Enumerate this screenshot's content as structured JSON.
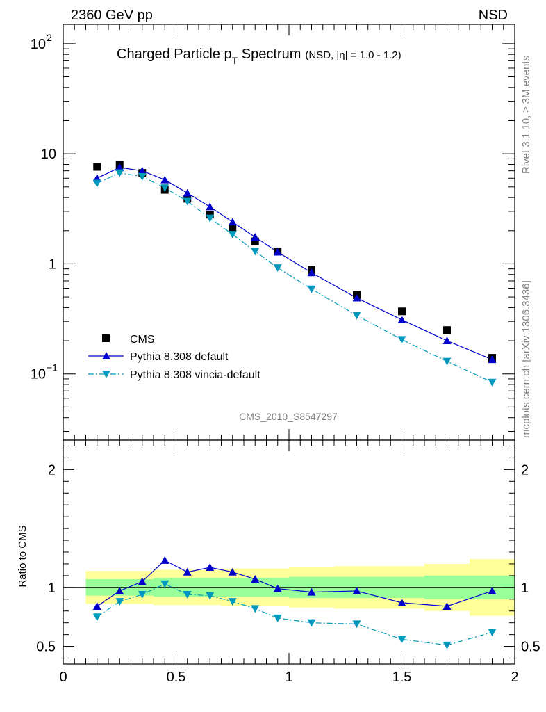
{
  "header": {
    "left": "2360 GeV pp",
    "right": "NSD"
  },
  "side_labels": {
    "rivet": "Rivet 3.1.10, ≥ 3M events",
    "mcplots": "mcplots.cern.ch [arXiv:1306.3436]"
  },
  "chart_data": {
    "type": "scatter",
    "title_main": "Charged Particle p",
    "title_sub": "T",
    "title_tail": " Spectrum",
    "title_small": "(NSD, |η| = 1.0 - 1.2)",
    "analysis_tag": "CMS_2010_S8547297",
    "ratio_ylabel": "Ratio to CMS",
    "xlim": [
      0,
      2
    ],
    "ylim": [
      0.025,
      150
    ],
    "yscale": "log",
    "ratio_ylim": [
      0.35,
      2.25
    ],
    "x_ticks": [
      "0",
      "0.5",
      "1",
      "1.5",
      "2"
    ],
    "y_ticks": [
      {
        "value": 0.1,
        "base": "10",
        "exp": "−1"
      },
      {
        "value": 1,
        "base": "1",
        "exp": ""
      },
      {
        "value": 10,
        "base": "10",
        "exp": ""
      },
      {
        "value": 100,
        "base": "10",
        "exp": "2"
      }
    ],
    "ratio_ticks": [
      "0.5",
      "1",
      "2"
    ],
    "x": [
      0.15,
      0.25,
      0.35,
      0.45,
      0.55,
      0.65,
      0.75,
      0.85,
      0.95,
      1.1,
      1.3,
      1.5,
      1.7,
      1.9
    ],
    "bin_edges": [
      0.1,
      0.2,
      0.3,
      0.4,
      0.5,
      0.6,
      0.7,
      0.8,
      0.9,
      1.0,
      1.2,
      1.4,
      1.6,
      1.8,
      2.0
    ],
    "band_inner": [
      0.07,
      0.07,
      0.07,
      0.08,
      0.08,
      0.08,
      0.08,
      0.08,
      0.08,
      0.09,
      0.09,
      0.09,
      0.1,
      0.1
    ],
    "band_outer": [
      0.14,
      0.14,
      0.14,
      0.15,
      0.15,
      0.15,
      0.16,
      0.16,
      0.16,
      0.17,
      0.18,
      0.18,
      0.2,
      0.24
    ],
    "legend_position": "bottom-left",
    "series": [
      {
        "name": "CMS",
        "color": "#000000",
        "marker": "square",
        "values": [
          7.6,
          7.9,
          6.7,
          4.7,
          3.9,
          2.8,
          2.1,
          1.6,
          1.3,
          0.88,
          0.52,
          0.37,
          0.25,
          0.14
        ]
      },
      {
        "name": "Pythia 8.308 default",
        "color": "#0000cc",
        "marker": "triangle-up",
        "line": "solid",
        "values": [
          6.0,
          7.5,
          7.0,
          5.8,
          4.4,
          3.3,
          2.4,
          1.75,
          1.28,
          0.83,
          0.49,
          0.31,
          0.2,
          0.135
        ],
        "ratio": [
          0.84,
          0.97,
          1.05,
          1.23,
          1.13,
          1.17,
          1.13,
          1.07,
          0.99,
          0.96,
          0.97,
          0.87,
          0.84,
          0.97
        ]
      },
      {
        "name": "Pythia 8.308 vincia-default",
        "color": "#0099bb",
        "marker": "triangle-down",
        "line": "dashdot",
        "values": [
          5.4,
          6.7,
          6.2,
          4.9,
          3.7,
          2.6,
          1.85,
          1.3,
          0.92,
          0.59,
          0.34,
          0.205,
          0.13,
          0.084
        ],
        "ratio": [
          0.75,
          0.88,
          0.94,
          1.03,
          0.94,
          0.93,
          0.88,
          0.82,
          0.74,
          0.7,
          0.69,
          0.56,
          0.51,
          0.62
        ]
      }
    ]
  }
}
